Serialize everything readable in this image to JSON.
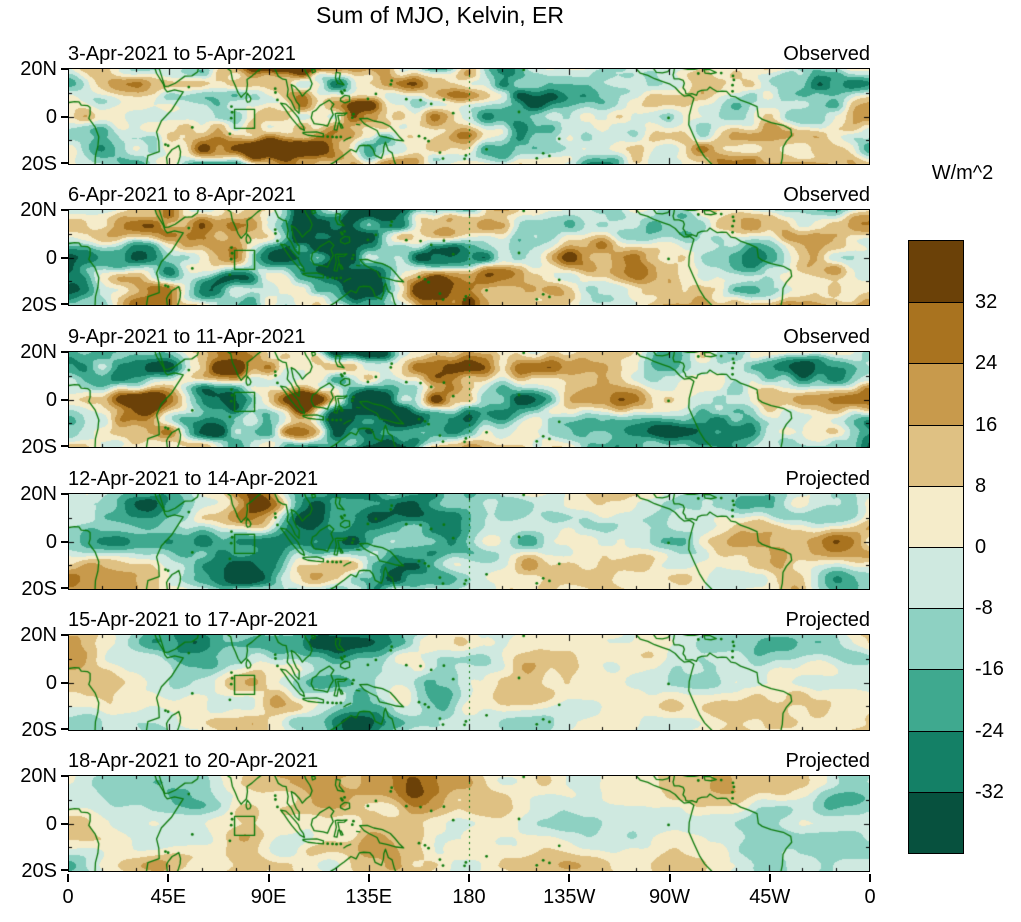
{
  "title": "Sum of MJO, Kelvin, ER",
  "chart_data": {
    "type": "heatmap",
    "title": "Sum of MJO, Kelvin, ER",
    "description": "Six stacked tropical-strip (20S-20N, 0-360E) filled-contour maps of summed MJO + Kelvin + ER wave anomalies for successive 3-day windows in April 2021; top three panels are observed fields, bottom three are projected fields. Anomalies in W/m^2, positive (brown) and negative (teal), with green coastlines, a dotted reference line at 180 longitude and a small green highlight box near 80E on the equator.",
    "unit": "W/m^2",
    "lat_range": [
      -20,
      20
    ],
    "lon_range": [
      0,
      360
    ],
    "grid": false,
    "legend_position": "right-colorbar",
    "lon_ticks": [
      "0",
      "45E",
      "90E",
      "135E",
      "180",
      "135W",
      "90W",
      "45W",
      "0"
    ],
    "lat_ticks": [
      "20N",
      "0",
      "20S"
    ],
    "contour_levels": [
      -32,
      -24,
      -16,
      -8,
      0,
      8,
      16,
      24,
      32
    ],
    "colorbar": {
      "unit_label": "W/m^2",
      "tick_labels": [
        "32",
        "24",
        "16",
        "8",
        "0",
        "-8",
        "-16",
        "-24",
        "-32"
      ],
      "colors_top_to_bottom": [
        "#6b4108",
        "#a9731f",
        "#c89a4c",
        "#dfc183",
        "#f5ecca",
        "#cfe9e0",
        "#8ed1c2",
        "#3fa98f",
        "#148066",
        "#07513e"
      ]
    },
    "panels": [
      {
        "date_range": "3-Apr-2021 to 5-Apr-2021",
        "status": "Observed"
      },
      {
        "date_range": "6-Apr-2021 to 8-Apr-2021",
        "status": "Observed"
      },
      {
        "date_range": "9-Apr-2021 to 11-Apr-2021",
        "status": "Observed"
      },
      {
        "date_range": "12-Apr-2021 to 14-Apr-2021",
        "status": "Projected"
      },
      {
        "date_range": "15-Apr-2021 to 17-Apr-2021",
        "status": "Projected"
      },
      {
        "date_range": "18-Apr-2021 to 20-Apr-2021",
        "status": "Projected"
      }
    ],
    "map_features": {
      "coastline_color": "#0c7a0c",
      "dateline_reference": "180",
      "highlight_box_lon": [
        74.5,
        83.5
      ],
      "highlight_box_lat": [
        -5,
        3
      ]
    }
  }
}
